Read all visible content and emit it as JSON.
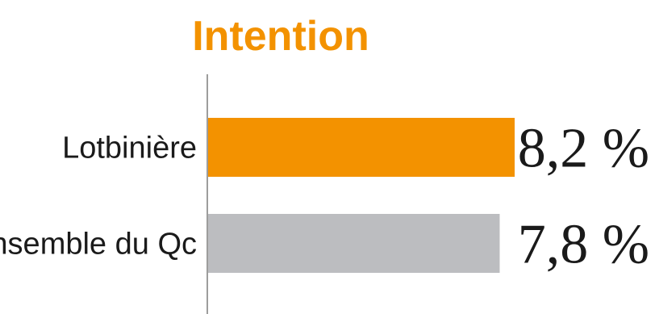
{
  "chart_data": {
    "type": "bar",
    "orientation": "horizontal",
    "title": "Intention",
    "categories": [
      "Lotbinière",
      "Ensemble du Qc"
    ],
    "values": [
      8.2,
      7.8
    ],
    "value_labels": [
      "8,2 %",
      "7,8 %"
    ],
    "colors": [
      "#f39200",
      "#bcbdc0"
    ],
    "title_color": "#f39200",
    "axis_color": "#9d9d9c",
    "xlim": [
      0,
      8.2
    ],
    "grid": false,
    "legend": "none"
  }
}
